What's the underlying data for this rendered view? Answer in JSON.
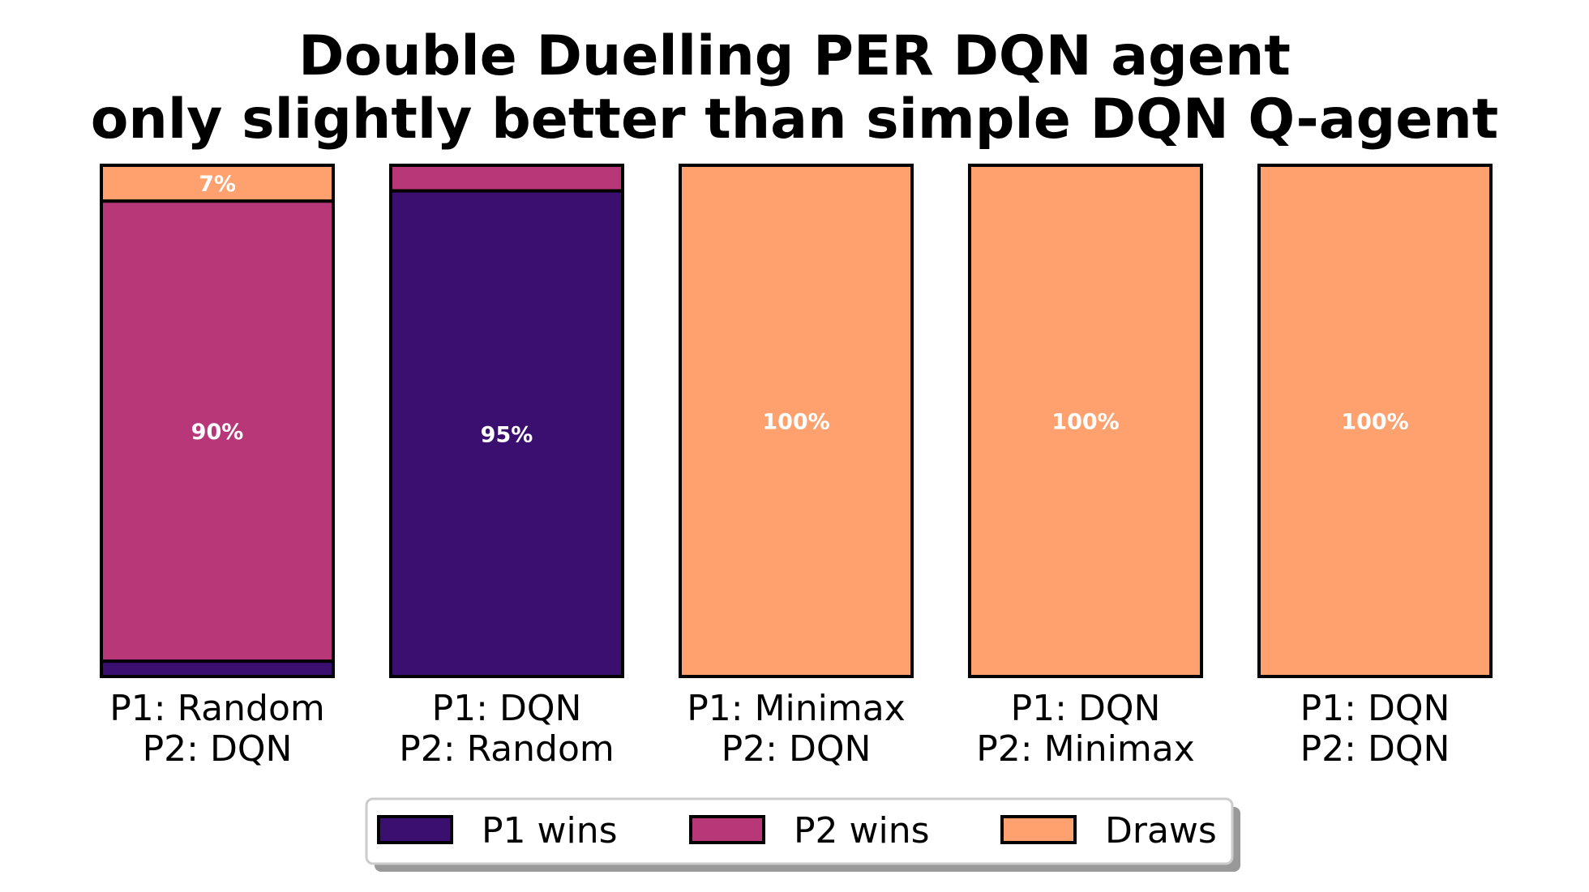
{
  "chart_data": {
    "type": "bar",
    "stacked": true,
    "normalized": true,
    "title_lines": [
      "Double Duelling PER DQN agent",
      "only slightly better than simple DQN Q-agent"
    ],
    "categories": [
      [
        "P1: Random",
        "P2: DQN"
      ],
      [
        "P1: DQN",
        "P2: Random"
      ],
      [
        "P1: Minimax",
        "P2: DQN"
      ],
      [
        "P1: DQN",
        "P2: Minimax"
      ],
      [
        "P1: DQN",
        "P2: DQN"
      ]
    ],
    "series": [
      {
        "name": "P1 wins",
        "color": "#3b0f70",
        "values": [
          3,
          95,
          0,
          0,
          0
        ]
      },
      {
        "name": "P2 wins",
        "color": "#b73779",
        "values": [
          90,
          5,
          0,
          0,
          0
        ]
      },
      {
        "name": "Draws",
        "color": "#fea16e",
        "values": [
          7,
          0,
          100,
          100,
          100
        ]
      }
    ],
    "data_labels": [
      [
        null,
        "95%",
        null,
        null,
        null
      ],
      [
        "90%",
        null,
        null,
        null,
        null
      ],
      [
        "7%",
        null,
        "100%",
        "100%",
        "100%"
      ]
    ],
    "ylim": [
      0,
      100
    ],
    "xlabel": "",
    "ylabel": "",
    "grid": false,
    "legend_position": "bottom-center"
  }
}
